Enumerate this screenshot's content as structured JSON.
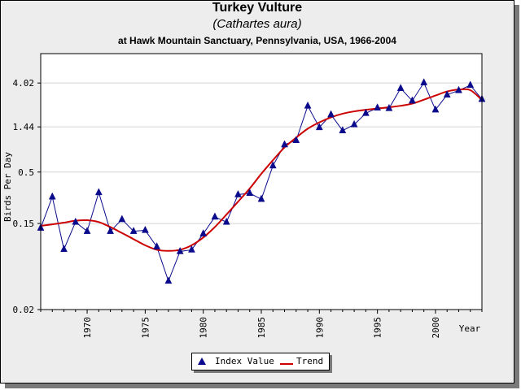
{
  "header": {
    "title": "Turkey Vulture",
    "subtitle": "(Cathartes aura)",
    "caption": "at Hawk Mountain Sanctuary, Pennsylvania, USA, 1966-2004"
  },
  "colors": {
    "points": "#0a0a8c",
    "trend": "#cc0000",
    "background": "#ededed",
    "plot": "#ffffff"
  },
  "legend": {
    "items": [
      {
        "label": "Index Value",
        "icon": "triangle-marker-icon"
      },
      {
        "label": "Trend",
        "icon": "red-line-icon"
      }
    ]
  },
  "chart_data": {
    "type": "line",
    "xlabel": "Year",
    "ylabel": "Birds Per Day",
    "xlim": [
      1966,
      2004
    ],
    "ylim": [
      0.02,
      8.0
    ],
    "y_scale": "log",
    "yticks": [
      4.02,
      1.44,
      0.5,
      0.15,
      0.02
    ],
    "ytick_labels": [
      "4.02",
      "1.44",
      "0.5",
      "0.15",
      "0.02"
    ],
    "xticks": [
      1970,
      1975,
      1980,
      1985,
      1990,
      1995,
      2000
    ],
    "grid": true,
    "legend_position": "bottom-center",
    "series": [
      {
        "name": "Index Value",
        "marker": "triangle",
        "x": [
          1966,
          1967,
          1968,
          1969,
          1970,
          1971,
          1972,
          1973,
          1974,
          1975,
          1976,
          1977,
          1978,
          1979,
          1980,
          1981,
          1982,
          1983,
          1984,
          1985,
          1986,
          1987,
          1988,
          1989,
          1990,
          1991,
          1992,
          1993,
          1994,
          1995,
          1996,
          1997,
          1998,
          1999,
          2000,
          2001,
          2002,
          2003,
          2004
        ],
        "y": [
          0.135,
          0.28,
          0.082,
          0.155,
          0.125,
          0.31,
          0.125,
          0.165,
          0.125,
          0.128,
          0.087,
          0.039,
          0.078,
          0.081,
          0.118,
          0.175,
          0.155,
          0.295,
          0.305,
          0.265,
          0.58,
          0.95,
          1.05,
          2.35,
          1.42,
          1.92,
          1.32,
          1.52,
          1.98,
          2.25,
          2.22,
          3.55,
          2.65,
          4.05,
          2.15,
          3.05,
          3.38,
          3.82,
          2.75
        ]
      },
      {
        "name": "Trend",
        "x": [
          1966,
          1967,
          1968,
          1969,
          1970,
          1971,
          1972,
          1973,
          1974,
          1975,
          1976,
          1977,
          1978,
          1979,
          1980,
          1981,
          1982,
          1983,
          1984,
          1985,
          1986,
          1987,
          1988,
          1989,
          1990,
          1991,
          1992,
          1993,
          1994,
          1995,
          1996,
          1997,
          1998,
          1999,
          2000,
          2001,
          2002,
          2003,
          2004
        ],
        "y": [
          0.142,
          0.147,
          0.153,
          0.16,
          0.162,
          0.155,
          0.138,
          0.12,
          0.104,
          0.09,
          0.081,
          0.079,
          0.081,
          0.09,
          0.108,
          0.138,
          0.185,
          0.25,
          0.34,
          0.48,
          0.66,
          0.89,
          1.12,
          1.38,
          1.6,
          1.8,
          1.96,
          2.07,
          2.15,
          2.21,
          2.28,
          2.36,
          2.48,
          2.72,
          3.0,
          3.3,
          3.45,
          3.4,
          2.7
        ]
      }
    ]
  }
}
